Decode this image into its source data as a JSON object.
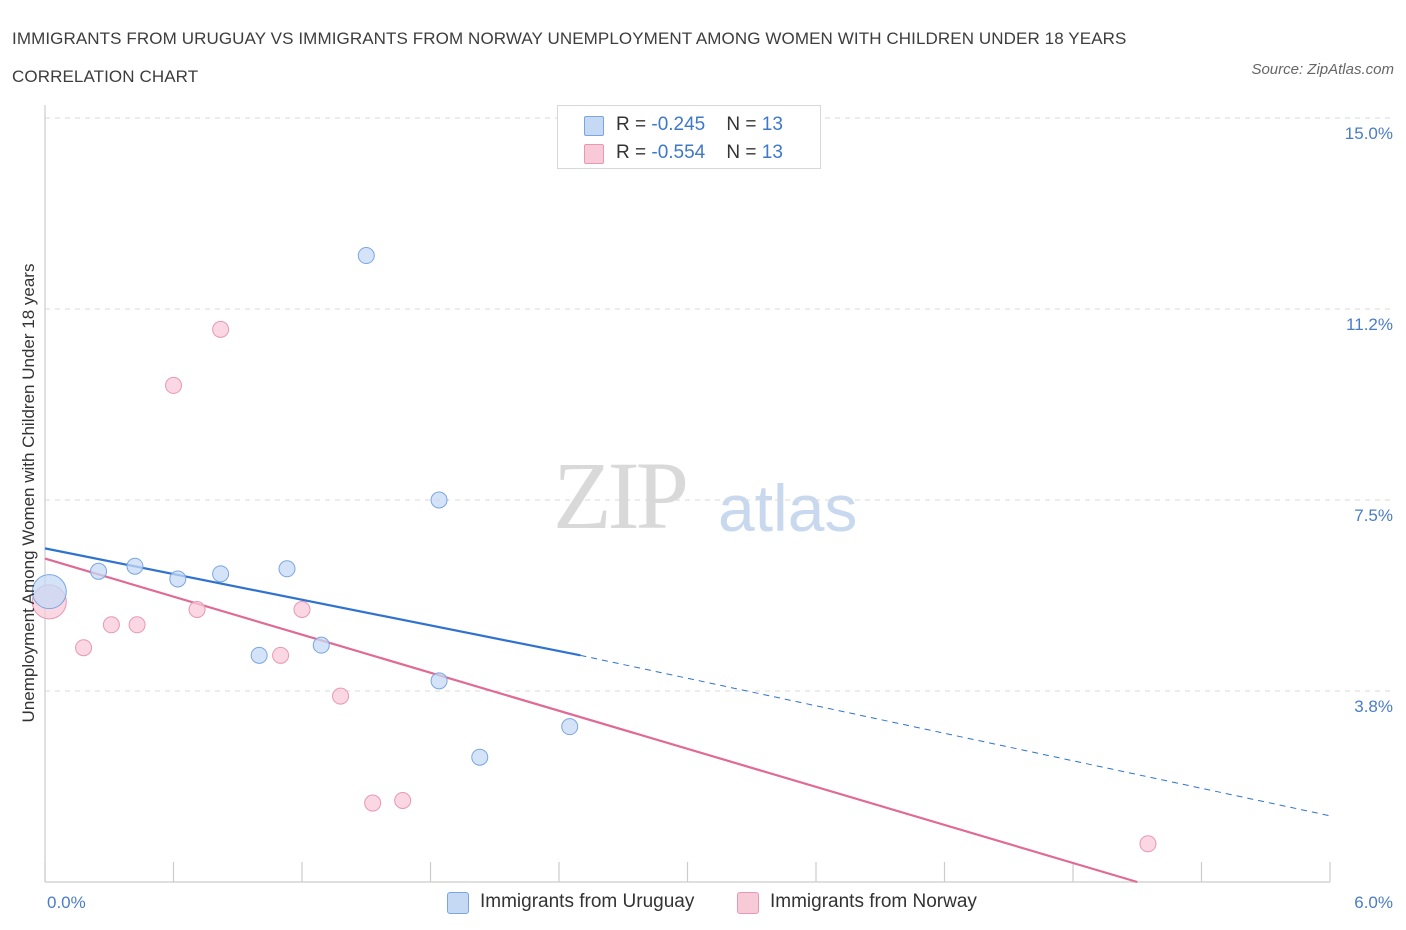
{
  "header": {
    "title": "IMMIGRANTS FROM URUGUAY VS IMMIGRANTS FROM NORWAY UNEMPLOYMENT AMONG WOMEN WITH CHILDREN UNDER 18 YEARS CORRELATION CHART",
    "source": "Source: ZipAtlas.com"
  },
  "watermark": {
    "zip": "ZIP",
    "atlas": "atlas"
  },
  "legend_top": {
    "rows": [
      {
        "r_label": "R = ",
        "r_value": "-0.245",
        "n_label": "N = ",
        "n_value": "13"
      },
      {
        "r_label": "R = ",
        "r_value": "-0.554",
        "n_label": "N = ",
        "n_value": "13"
      }
    ]
  },
  "legend_bottom": {
    "uruguay": "Immigrants from Uruguay",
    "norway": "Immigrants from Norway"
  },
  "colors": {
    "uruguay_fill": "#c5d9f5",
    "uruguay_stroke": "#7aa6e0",
    "uruguay_line": "#2f72d0",
    "norway_fill": "#f8cad8",
    "norway_stroke": "#e898b2",
    "norway_line": "#e06a94",
    "grid": "#d9d9d9"
  },
  "chart_data": {
    "type": "scatter",
    "title": "IMMIGRANTS FROM URUGUAY VS IMMIGRANTS FROM NORWAY UNEMPLOYMENT AMONG WOMEN WITH CHILDREN UNDER 18 YEARS CORRELATION CHART",
    "xlabel": "",
    "ylabel": "Unemployment Among Women with Children Under 18 years",
    "xlim": [
      0,
      6.0
    ],
    "ylim": [
      0,
      15.0
    ],
    "x_tick_labels": [
      "0.0%",
      "6.0%"
    ],
    "y_tick_labels": [
      "15.0%",
      "11.2%",
      "7.5%",
      "3.8%"
    ],
    "y_tick_values": [
      15.0,
      11.25,
      7.5,
      3.75
    ],
    "grid": true,
    "legend_placement": "bottom",
    "series": [
      {
        "name": "Immigrants from Uruguay",
        "points": [
          {
            "x": 0.02,
            "y": 5.7,
            "big": true
          },
          {
            "x": 0.25,
            "y": 6.1
          },
          {
            "x": 0.42,
            "y": 6.2
          },
          {
            "x": 0.62,
            "y": 5.95
          },
          {
            "x": 0.82,
            "y": 6.05
          },
          {
            "x": 1.0,
            "y": 4.45
          },
          {
            "x": 1.13,
            "y": 6.15
          },
          {
            "x": 1.29,
            "y": 4.65
          },
          {
            "x": 1.5,
            "y": 12.3
          },
          {
            "x": 1.84,
            "y": 3.95
          },
          {
            "x": 1.84,
            "y": 7.5
          },
          {
            "x": 2.03,
            "y": 2.45
          },
          {
            "x": 2.45,
            "y": 3.05
          }
        ],
        "trend": {
          "x0": 0,
          "y0": 6.55,
          "x1": 2.5,
          "y1": 4.45,
          "dashed_to_x": 6.0,
          "dashed_to_y": 1.3
        }
      },
      {
        "name": "Immigrants from Norway",
        "points": [
          {
            "x": 0.02,
            "y": 5.5,
            "big": true
          },
          {
            "x": 0.18,
            "y": 4.6
          },
          {
            "x": 0.31,
            "y": 5.05
          },
          {
            "x": 0.43,
            "y": 5.05
          },
          {
            "x": 0.6,
            "y": 9.75
          },
          {
            "x": 0.71,
            "y": 5.35
          },
          {
            "x": 0.82,
            "y": 10.85
          },
          {
            "x": 1.1,
            "y": 4.45
          },
          {
            "x": 1.2,
            "y": 5.35
          },
          {
            "x": 1.38,
            "y": 3.65
          },
          {
            "x": 1.53,
            "y": 1.55
          },
          {
            "x": 1.67,
            "y": 1.6
          },
          {
            "x": 5.15,
            "y": 0.75
          }
        ],
        "trend": {
          "x0": 0,
          "y0": 6.35,
          "x1": 5.1,
          "y1": 0.0
        }
      }
    ]
  }
}
